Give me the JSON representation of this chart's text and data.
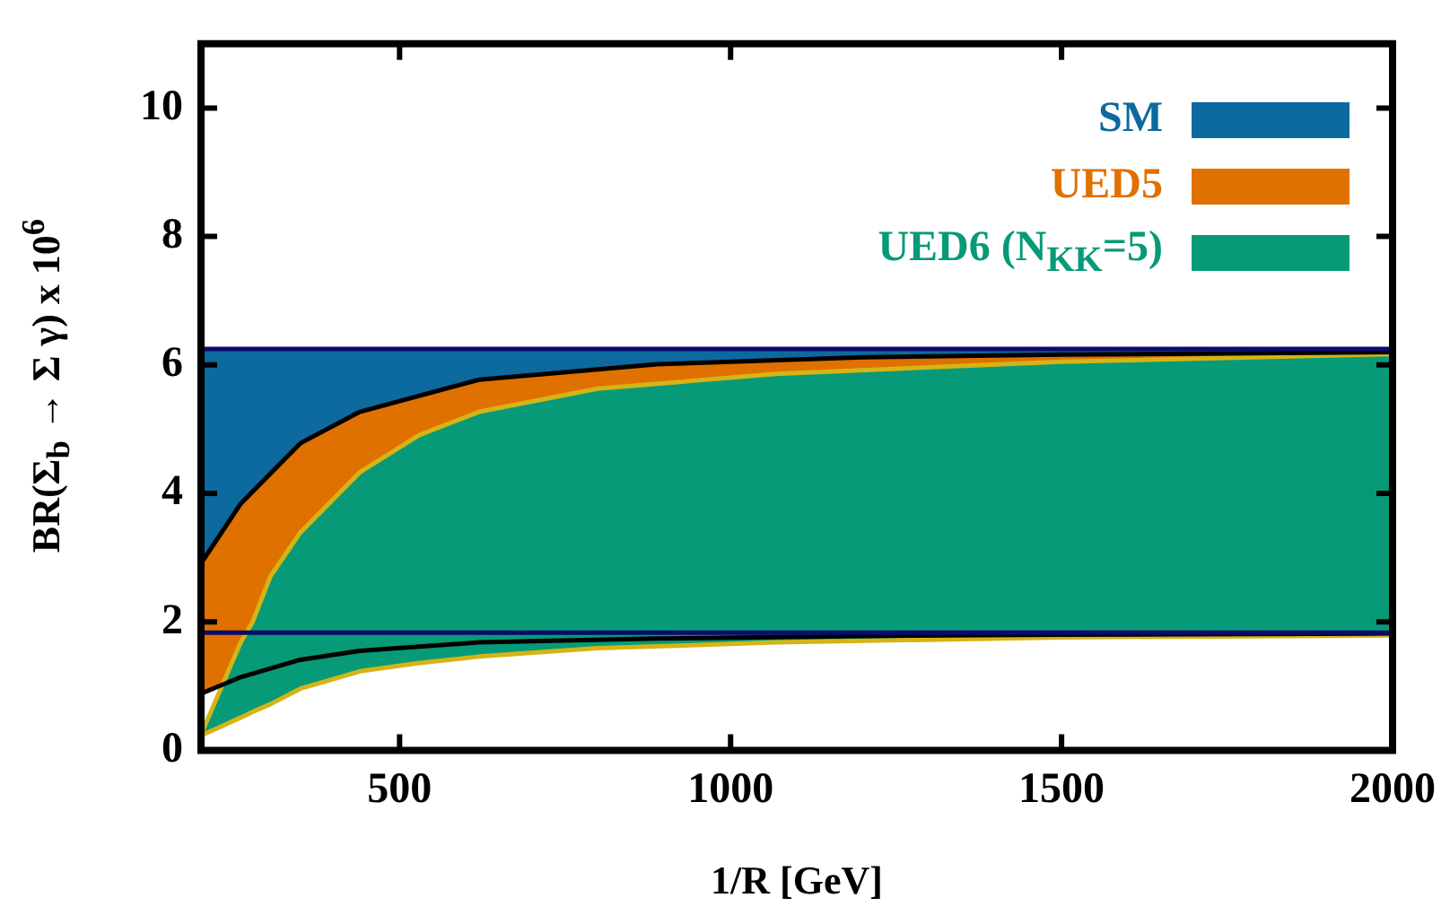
{
  "chart_data": {
    "type": "area",
    "xlabel": "1/R [GeV]",
    "ylabel": "BR(Σ$_{b}$ → Σ γ) x 10$^{6}$",
    "xlim": [
      200,
      2000
    ],
    "ylim": [
      0,
      11
    ],
    "xticks": [
      500,
      1000,
      1500,
      2000
    ],
    "yticks": [
      0,
      2,
      4,
      6,
      8,
      10
    ],
    "grid": false,
    "legend": "top right",
    "line_style": "solid",
    "series": [
      {
        "name": "SM",
        "color": "#0c6a9e",
        "x": [
          200,
          2000
        ],
        "values": [
          null,
          null
        ],
        "lower": [
          1.83,
          1.83
        ],
        "upper": [
          6.25,
          6.25
        ]
      },
      {
        "name": "UED5",
        "color": "#e07000",
        "x": [
          202,
          260,
          350,
          440,
          620,
          889,
          1200,
          1500,
          2000
        ],
        "values": [
          null,
          null,
          null,
          null,
          null,
          null,
          null,
          null,
          null
        ],
        "lower": [
          0.89,
          1.14,
          1.41,
          1.55,
          1.68,
          1.74,
          1.78,
          1.8,
          1.82
        ],
        "upper": [
          2.94,
          3.84,
          4.78,
          5.27,
          5.77,
          6.01,
          6.12,
          6.16,
          6.2
        ]
      },
      {
        "name": "UED6 (N$_{KK}$=5)",
        "color": "#079a78",
        "x": [
          202,
          260,
          278,
          305,
          350,
          440,
          530,
          620,
          799,
          1069,
          1500,
          2000
        ],
        "values": [
          null,
          null,
          null,
          null,
          null,
          null,
          null,
          null,
          null,
          null,
          null,
          null
        ],
        "lower": [
          0.24,
          0.51,
          0.6,
          0.72,
          0.96,
          1.23,
          1.36,
          1.46,
          1.59,
          1.68,
          1.76,
          1.79
        ],
        "upper": [
          0.29,
          1.68,
          2.0,
          2.71,
          3.39,
          4.33,
          4.91,
          5.27,
          5.63,
          5.86,
          6.05,
          6.17
        ]
      },
      {
        "type": "line",
        "color": "#0a0a6e",
        "x": [
          200,
          2000
        ],
        "values": [
          6.25,
          6.25
        ]
      },
      {
        "type": "line",
        "color": "#0a0a6e",
        "x": [
          200,
          2000
        ],
        "values": [
          1.83,
          1.83
        ]
      },
      {
        "type": "line",
        "color": "#000000",
        "x": [
          202,
          260,
          350,
          440,
          620,
          889,
          1200,
          1500,
          2000
        ],
        "values": [
          2.94,
          3.84,
          4.78,
          5.27,
          5.77,
          6.01,
          6.12,
          6.16,
          6.2
        ]
      },
      {
        "type": "line",
        "color": "#000000",
        "x": [
          202,
          260,
          350,
          440,
          620,
          889,
          1200,
          1500,
          2000
        ],
        "values": [
          0.89,
          1.14,
          1.41,
          1.55,
          1.68,
          1.74,
          1.78,
          1.8,
          1.82
        ]
      },
      {
        "type": "line",
        "color": "#d4b416",
        "x": [
          202,
          260,
          278,
          305,
          350,
          440,
          530,
          620,
          799,
          1069,
          1500,
          2000
        ],
        "values": [
          0.29,
          1.68,
          2.0,
          2.71,
          3.39,
          4.33,
          4.91,
          5.27,
          5.63,
          5.86,
          6.05,
          6.17
        ]
      },
      {
        "type": "line",
        "color": "#d4b416",
        "x": [
          202,
          260,
          278,
          305,
          350,
          440,
          530,
          620,
          799,
          1069,
          1500,
          2000
        ],
        "values": [
          0.24,
          0.51,
          0.6,
          0.72,
          0.96,
          1.23,
          1.36,
          1.46,
          1.59,
          1.68,
          1.76,
          1.79
        ]
      }
    ]
  }
}
